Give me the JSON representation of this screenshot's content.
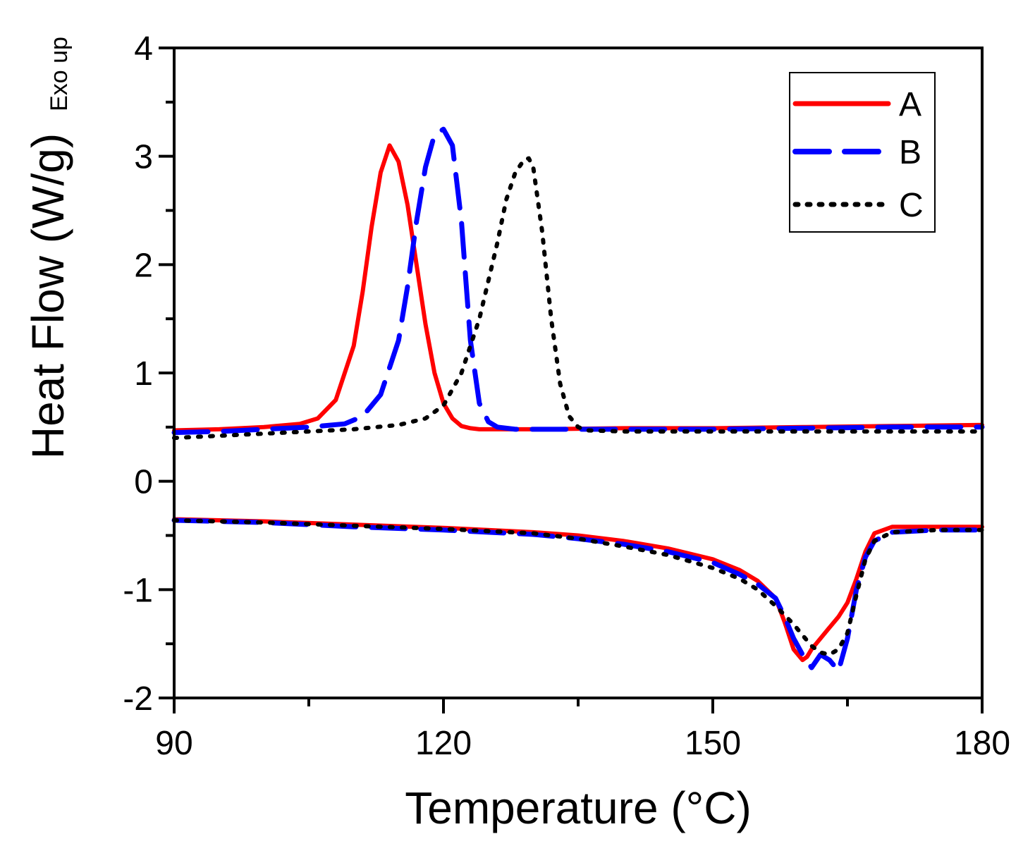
{
  "chart_data": {
    "type": "line",
    "xlabel": "Temperature (°C)",
    "ylabel": "Heat Flow (W/g)",
    "ylabel_note": "Exo up",
    "xlim": [
      90,
      180
    ],
    "ylim": [
      -2,
      4
    ],
    "x_ticks": [
      "90",
      "120",
      "150",
      "180"
    ],
    "y_ticks": [
      "-2",
      "-1",
      "0",
      "1",
      "2",
      "3",
      "4"
    ],
    "legend": {
      "placement": "top-right",
      "entries": [
        "A",
        "B",
        "C"
      ]
    },
    "series": [
      {
        "name": "A",
        "color": "#ff0000",
        "style": "solid",
        "segments": [
          {
            "x": [
              90,
              95,
              100,
              104,
              106,
              108,
              110,
              111,
              112,
              113,
              114,
              115,
              116,
              117,
              118,
              119,
              120,
              121,
              122,
              123,
              124,
              126,
              130,
              140,
              150,
              160,
              170,
              180
            ],
            "y": [
              0.47,
              0.48,
              0.5,
              0.53,
              0.58,
              0.75,
              1.25,
              1.75,
              2.35,
              2.85,
              3.1,
              2.95,
              2.55,
              2.0,
              1.45,
              1.0,
              0.72,
              0.58,
              0.51,
              0.49,
              0.48,
              0.48,
              0.48,
              0.49,
              0.49,
              0.5,
              0.51,
              0.52
            ]
          },
          {
            "x": [
              90,
              100,
              110,
              120,
              130,
              135,
              140,
              145,
              150,
              153,
              155,
              157,
              158,
              159,
              160,
              160.5,
              161,
              162,
              163,
              164,
              165,
              166,
              167,
              168,
              170,
              175,
              180
            ],
            "y": [
              -0.35,
              -0.37,
              -0.4,
              -0.43,
              -0.47,
              -0.5,
              -0.55,
              -0.62,
              -0.72,
              -0.82,
              -0.92,
              -1.08,
              -1.3,
              -1.55,
              -1.65,
              -1.62,
              -1.55,
              -1.45,
              -1.35,
              -1.25,
              -1.12,
              -0.9,
              -0.65,
              -0.48,
              -0.42,
              -0.42,
              -0.42
            ]
          }
        ]
      },
      {
        "name": "B",
        "color": "#0000ff",
        "style": "dash",
        "segments": [
          {
            "x": [
              90,
              95,
              100,
              105,
              109,
              111,
              113,
              115,
              116,
              117,
              118,
              119,
              120,
              121,
              122,
              122.5,
              123,
              124,
              125,
              126,
              128,
              130,
              140,
              150,
              160,
              170,
              180
            ],
            "y": [
              0.45,
              0.46,
              0.48,
              0.5,
              0.53,
              0.6,
              0.8,
              1.3,
              1.8,
              2.4,
              2.9,
              3.2,
              3.25,
              3.1,
              2.4,
              1.85,
              1.3,
              0.72,
              0.55,
              0.5,
              0.48,
              0.48,
              0.48,
              0.48,
              0.49,
              0.5,
              0.5
            ]
          },
          {
            "x": [
              90,
              100,
              110,
              120,
              130,
              135,
              140,
              145,
              150,
              153,
              155,
              157,
              158,
              159,
              160,
              161,
              162,
              163,
              164,
              165,
              166,
              167,
              168,
              170,
              175,
              180
            ],
            "y": [
              -0.36,
              -0.38,
              -0.42,
              -0.45,
              -0.49,
              -0.53,
              -0.58,
              -0.65,
              -0.75,
              -0.86,
              -0.95,
              -1.08,
              -1.25,
              -1.45,
              -1.6,
              -1.72,
              -1.6,
              -1.65,
              -1.75,
              -1.45,
              -1.0,
              -0.7,
              -0.55,
              -0.47,
              -0.45,
              -0.45
            ]
          }
        ]
      },
      {
        "name": "C",
        "color": "#000000",
        "style": "dot",
        "segments": [
          {
            "x": [
              90,
              95,
              100,
              105,
              110,
              115,
              118,
              120,
              122,
              124,
              126,
              127,
              128,
              129,
              129.5,
              130,
              131,
              132,
              133,
              134,
              135,
              136,
              140,
              150,
              160,
              170,
              180
            ],
            "y": [
              0.4,
              0.42,
              0.44,
              0.46,
              0.48,
              0.52,
              0.58,
              0.7,
              1.0,
              1.5,
              2.2,
              2.6,
              2.85,
              2.97,
              2.98,
              2.9,
              2.3,
              1.5,
              0.9,
              0.6,
              0.5,
              0.47,
              0.46,
              0.46,
              0.46,
              0.46,
              0.46
            ]
          },
          {
            "x": [
              90,
              100,
              110,
              120,
              130,
              135,
              140,
              145,
              150,
              153,
              155,
              157,
              159,
              160,
              161,
              162,
              163,
              164,
              165,
              166,
              167,
              168,
              170,
              175,
              180
            ],
            "y": [
              -0.36,
              -0.38,
              -0.41,
              -0.44,
              -0.48,
              -0.53,
              -0.6,
              -0.68,
              -0.8,
              -0.9,
              -1.0,
              -1.15,
              -1.32,
              -1.42,
              -1.52,
              -1.58,
              -1.6,
              -1.55,
              -1.4,
              -1.05,
              -0.72,
              -0.55,
              -0.47,
              -0.45,
              -0.45
            ]
          }
        ]
      }
    ]
  }
}
